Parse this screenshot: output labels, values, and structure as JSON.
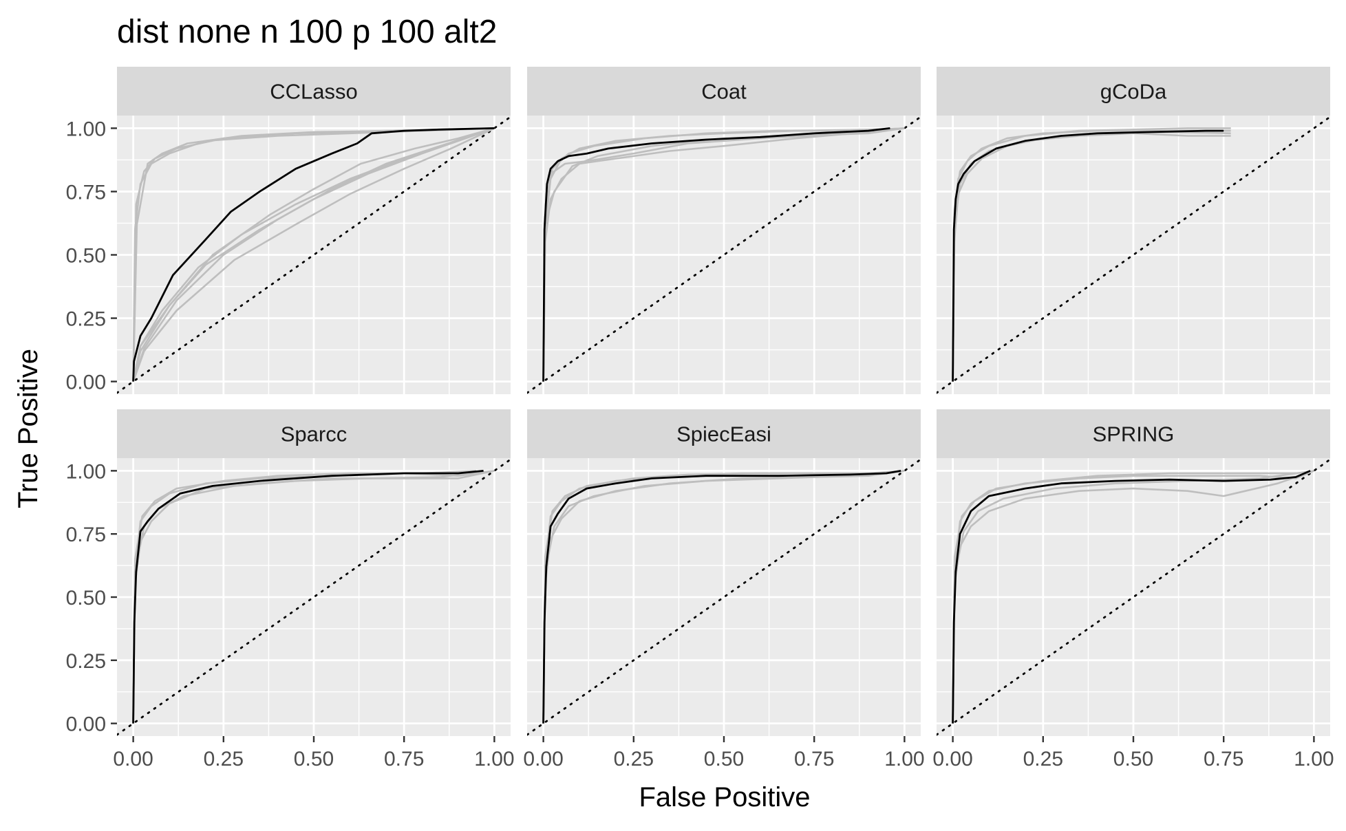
{
  "chart_data": {
    "type": "line",
    "title": "dist none n 100 p 100 alt2",
    "xlabel": "False Positive",
    "ylabel": "True Positive",
    "xlim": [
      -0.045,
      1.045
    ],
    "ylim": [
      -0.05,
      1.05
    ],
    "x_ticks": [
      0,
      0.25,
      0.5,
      0.75,
      1
    ],
    "y_ticks": [
      0,
      0.25,
      0.5,
      0.75,
      1
    ],
    "x_tick_labels": [
      "0.00",
      "0.25",
      "0.50",
      "0.75",
      "1.00"
    ],
    "y_tick_labels": [
      "0.00",
      "0.25",
      "0.50",
      "0.75",
      "1.00"
    ],
    "grid": true,
    "facet_layout": "2 rows x 3 columns",
    "reference_line": "dotted diagonal y = x",
    "colors": {
      "panel_background": "#ebebeb",
      "grid": "#ffffff",
      "strip_background": "#d9d9d9",
      "replicate_lines": "#bebebe",
      "mean_line": "#000000",
      "diagonal": "#000000"
    },
    "panels": [
      {
        "label": "CCLasso",
        "mean": {
          "x": [
            0,
            0.002,
            0.02,
            0.05,
            0.11,
            0.2,
            0.27,
            0.35,
            0.45,
            0.55,
            0.62,
            0.66,
            0.75,
            0.85,
            1.0
          ],
          "y": [
            0,
            0.08,
            0.18,
            0.25,
            0.42,
            0.56,
            0.67,
            0.75,
            0.84,
            0.9,
            0.94,
            0.98,
            0.99,
            0.995,
            1.0
          ]
        },
        "replicates": [
          {
            "x": [
              0,
              0.005,
              0.02,
              0.05,
              0.1,
              0.2,
              0.4,
              0.6,
              0.8,
              1.0
            ],
            "y": [
              0,
              0.6,
              0.78,
              0.86,
              0.9,
              0.95,
              0.97,
              0.98,
              0.99,
              1.0
            ]
          },
          {
            "x": [
              0,
              0.008,
              0.03,
              0.06,
              0.12,
              0.25,
              0.45,
              0.7,
              1.0
            ],
            "y": [
              0,
              0.7,
              0.83,
              0.88,
              0.92,
              0.96,
              0.98,
              0.99,
              1.0
            ]
          },
          {
            "x": [
              0,
              0.01,
              0.04,
              0.08,
              0.15,
              0.3,
              0.5,
              0.75,
              1.0
            ],
            "y": [
              0,
              0.62,
              0.86,
              0.9,
              0.94,
              0.97,
              0.985,
              0.99,
              1.0
            ]
          },
          {
            "x": [
              0,
              0.02,
              0.08,
              0.18,
              0.3,
              0.45,
              0.6,
              0.75,
              0.9,
              1.0
            ],
            "y": [
              0,
              0.14,
              0.28,
              0.45,
              0.58,
              0.7,
              0.8,
              0.88,
              0.95,
              1.0
            ]
          },
          {
            "x": [
              0,
              0.02,
              0.1,
              0.2,
              0.35,
              0.5,
              0.65,
              0.8,
              0.92,
              1.0
            ],
            "y": [
              0,
              0.12,
              0.3,
              0.46,
              0.6,
              0.72,
              0.82,
              0.9,
              0.96,
              1.0
            ]
          },
          {
            "x": [
              0,
              0.03,
              0.12,
              0.25,
              0.4,
              0.55,
              0.7,
              0.85,
              1.0
            ],
            "y": [
              0,
              0.13,
              0.32,
              0.5,
              0.64,
              0.76,
              0.86,
              0.93,
              1.0
            ]
          },
          {
            "x": [
              0,
              0.02,
              0.1,
              0.22,
              0.38,
              0.5,
              0.63,
              0.78,
              0.9,
              1.0
            ],
            "y": [
              0,
              0.14,
              0.3,
              0.5,
              0.66,
              0.76,
              0.86,
              0.92,
              0.96,
              1.0
            ]
          },
          {
            "x": [
              0,
              0.03,
              0.12,
              0.28,
              0.45,
              0.6,
              0.75,
              0.88,
              1.0
            ],
            "y": [
              0,
              0.12,
              0.28,
              0.48,
              0.62,
              0.74,
              0.84,
              0.92,
              1.0
            ]
          }
        ]
      },
      {
        "label": "Coat",
        "mean": {
          "x": [
            0,
            0.003,
            0.01,
            0.02,
            0.04,
            0.07,
            0.12,
            0.18,
            0.3,
            0.45,
            0.6,
            0.75,
            0.9,
            0.96
          ],
          "y": [
            0,
            0.6,
            0.78,
            0.84,
            0.87,
            0.89,
            0.9,
            0.92,
            0.94,
            0.955,
            0.965,
            0.98,
            0.99,
            1.0
          ]
        },
        "replicates": [
          {
            "x": [
              0,
              0.005,
              0.02,
              0.05,
              0.1,
              0.2,
              0.35,
              0.5,
              0.7,
              0.9,
              1.0
            ],
            "y": [
              0,
              0.6,
              0.8,
              0.88,
              0.92,
              0.95,
              0.97,
              0.98,
              0.99,
              0.995,
              1.0
            ]
          },
          {
            "x": [
              0,
              0.005,
              0.02,
              0.05,
              0.1,
              0.2,
              0.35,
              0.5,
              0.7,
              0.9,
              1.0
            ],
            "y": [
              0,
              0.55,
              0.72,
              0.8,
              0.86,
              0.88,
              0.91,
              0.93,
              0.96,
              0.985,
              1.0
            ]
          },
          {
            "x": [
              0,
              0.004,
              0.02,
              0.06,
              0.12,
              0.25,
              0.4,
              0.6,
              0.8,
              0.95
            ],
            "y": [
              0,
              0.65,
              0.82,
              0.86,
              0.87,
              0.9,
              0.94,
              0.96,
              0.975,
              0.99
            ]
          },
          {
            "x": [
              0,
              0.005,
              0.03,
              0.08,
              0.15,
              0.3,
              0.5,
              0.7,
              0.9,
              1.0
            ],
            "y": [
              0,
              0.62,
              0.75,
              0.85,
              0.89,
              0.93,
              0.96,
              0.97,
              0.98,
              1.0
            ]
          },
          {
            "x": [
              0,
              0.006,
              0.025,
              0.07,
              0.14,
              0.28,
              0.45,
              0.65,
              0.85,
              1.0
            ],
            "y": [
              0,
              0.7,
              0.84,
              0.9,
              0.93,
              0.96,
              0.98,
              0.99,
              0.99,
              1.0
            ]
          }
        ]
      },
      {
        "label": "gCoDa",
        "mean": {
          "x": [
            0,
            0.003,
            0.008,
            0.015,
            0.03,
            0.06,
            0.12,
            0.2,
            0.3,
            0.4,
            0.55,
            0.7,
            0.75
          ],
          "y": [
            0,
            0.6,
            0.72,
            0.78,
            0.82,
            0.87,
            0.92,
            0.95,
            0.97,
            0.98,
            0.985,
            0.99,
            0.99
          ]
        },
        "replicates": [
          {
            "x": [
              0,
              0.004,
              0.015,
              0.04,
              0.08,
              0.15,
              0.25,
              0.4,
              0.6,
              0.77
            ],
            "y": [
              0,
              0.65,
              0.8,
              0.87,
              0.92,
              0.96,
              0.98,
              0.99,
              0.99,
              0.99
            ]
          },
          {
            "x": [
              0,
              0.004,
              0.015,
              0.04,
              0.08,
              0.15,
              0.25,
              0.4,
              0.6,
              0.77
            ],
            "y": [
              0,
              0.55,
              0.74,
              0.82,
              0.88,
              0.93,
              0.96,
              0.98,
              0.985,
              0.98
            ]
          },
          {
            "x": [
              0,
              0.005,
              0.02,
              0.05,
              0.1,
              0.2,
              0.35,
              0.5,
              0.65,
              0.77
            ],
            "y": [
              0,
              0.62,
              0.78,
              0.86,
              0.91,
              0.95,
              0.97,
              0.98,
              0.97,
              0.97
            ]
          },
          {
            "x": [
              0,
              0.005,
              0.02,
              0.05,
              0.1,
              0.2,
              0.35,
              0.5,
              0.65,
              0.77
            ],
            "y": [
              0,
              0.68,
              0.83,
              0.89,
              0.93,
              0.97,
              0.99,
              0.995,
              1.0,
              1.0
            ]
          }
        ]
      },
      {
        "label": "Sparcc",
        "mean": {
          "x": [
            0,
            0.003,
            0.008,
            0.02,
            0.04,
            0.07,
            0.13,
            0.22,
            0.35,
            0.55,
            0.75,
            0.9,
            0.97
          ],
          "y": [
            0,
            0.4,
            0.6,
            0.76,
            0.8,
            0.85,
            0.91,
            0.94,
            0.96,
            0.98,
            0.99,
            0.99,
            1.0
          ]
        },
        "replicates": [
          {
            "x": [
              0,
              0.005,
              0.02,
              0.05,
              0.1,
              0.2,
              0.35,
              0.55,
              0.75,
              0.9,
              1.0
            ],
            "y": [
              0,
              0.6,
              0.8,
              0.86,
              0.91,
              0.95,
              0.97,
              0.98,
              0.99,
              0.98,
              1.0
            ]
          },
          {
            "x": [
              0,
              0.005,
              0.02,
              0.05,
              0.1,
              0.2,
              0.35,
              0.55,
              0.75,
              0.9,
              1.0
            ],
            "y": [
              0,
              0.55,
              0.72,
              0.8,
              0.87,
              0.93,
              0.95,
              0.97,
              0.97,
              0.97,
              1.0
            ]
          },
          {
            "x": [
              0,
              0.005,
              0.025,
              0.06,
              0.12,
              0.25,
              0.4,
              0.6,
              0.8,
              0.95
            ],
            "y": [
              0,
              0.65,
              0.82,
              0.88,
              0.93,
              0.96,
              0.98,
              0.99,
              0.99,
              1.0
            ]
          },
          {
            "x": [
              0,
              0.005,
              0.03,
              0.07,
              0.14,
              0.28,
              0.45,
              0.65,
              0.85,
              1.0
            ],
            "y": [
              0,
              0.6,
              0.78,
              0.85,
              0.9,
              0.94,
              0.96,
              0.97,
              0.975,
              1.0
            ]
          }
        ]
      },
      {
        "label": "SpiecEasi",
        "mean": {
          "x": [
            0,
            0.003,
            0.008,
            0.02,
            0.04,
            0.07,
            0.12,
            0.2,
            0.3,
            0.45,
            0.65,
            0.85,
            0.95,
            0.99
          ],
          "y": [
            0,
            0.4,
            0.62,
            0.78,
            0.83,
            0.89,
            0.93,
            0.95,
            0.97,
            0.98,
            0.98,
            0.985,
            0.99,
            1.0
          ]
        },
        "replicates": [
          {
            "x": [
              0,
              0.005,
              0.02,
              0.05,
              0.1,
              0.2,
              0.35,
              0.55,
              0.75,
              0.9,
              1.0
            ],
            "y": [
              0,
              0.62,
              0.82,
              0.88,
              0.93,
              0.96,
              0.98,
              0.99,
              0.99,
              0.99,
              1.0
            ]
          },
          {
            "x": [
              0,
              0.005,
              0.02,
              0.05,
              0.1,
              0.2,
              0.35,
              0.55,
              0.75,
              0.9,
              1.0
            ],
            "y": [
              0,
              0.55,
              0.73,
              0.81,
              0.88,
              0.92,
              0.95,
              0.97,
              0.975,
              0.98,
              1.0
            ]
          },
          {
            "x": [
              0,
              0.005,
              0.025,
              0.06,
              0.12,
              0.25,
              0.4,
              0.6,
              0.8,
              0.95
            ],
            "y": [
              0,
              0.66,
              0.84,
              0.9,
              0.94,
              0.97,
              0.985,
              0.99,
              0.99,
              0.99
            ]
          },
          {
            "x": [
              0,
              0.005,
              0.03,
              0.07,
              0.14,
              0.28,
              0.45,
              0.65,
              0.85,
              1.0
            ],
            "y": [
              0,
              0.6,
              0.78,
              0.86,
              0.9,
              0.94,
              0.96,
              0.97,
              0.98,
              1.0
            ]
          }
        ]
      },
      {
        "label": "SPRING",
        "mean": {
          "x": [
            0,
            0.003,
            0.008,
            0.02,
            0.05,
            0.1,
            0.2,
            0.3,
            0.45,
            0.6,
            0.75,
            0.88,
            0.95,
            0.99
          ],
          "y": [
            0,
            0.4,
            0.6,
            0.75,
            0.84,
            0.9,
            0.93,
            0.95,
            0.96,
            0.965,
            0.96,
            0.965,
            0.975,
            1.0
          ]
        },
        "replicates": [
          {
            "x": [
              0,
              0.005,
              0.02,
              0.05,
              0.1,
              0.2,
              0.35,
              0.5,
              0.7,
              0.85,
              0.95,
              1.0
            ],
            "y": [
              0,
              0.6,
              0.8,
              0.87,
              0.92,
              0.95,
              0.97,
              0.98,
              0.98,
              0.98,
              0.97,
              1.0
            ]
          },
          {
            "x": [
              0,
              0.005,
              0.02,
              0.05,
              0.1,
              0.2,
              0.35,
              0.5,
              0.65,
              0.75,
              0.9,
              1.0
            ],
            "y": [
              0,
              0.55,
              0.7,
              0.78,
              0.84,
              0.89,
              0.92,
              0.93,
              0.92,
              0.9,
              0.95,
              1.0
            ]
          },
          {
            "x": [
              0,
              0.005,
              0.025,
              0.06,
              0.12,
              0.25,
              0.4,
              0.6,
              0.8,
              0.95
            ],
            "y": [
              0,
              0.66,
              0.82,
              0.88,
              0.93,
              0.96,
              0.98,
              0.99,
              0.99,
              0.99
            ]
          },
          {
            "x": [
              0,
              0.005,
              0.03,
              0.07,
              0.14,
              0.28,
              0.45,
              0.65,
              0.85,
              1.0
            ],
            "y": [
              0,
              0.58,
              0.76,
              0.84,
              0.89,
              0.93,
              0.95,
              0.96,
              0.97,
              1.0
            ]
          }
        ]
      }
    ]
  }
}
